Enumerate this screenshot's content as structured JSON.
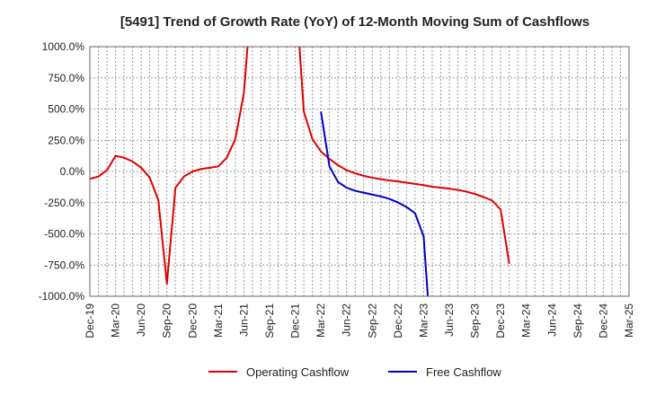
{
  "chart_data": {
    "type": "line",
    "title": "[5491]  Trend of Growth Rate (YoY) of 12-Month Moving Sum of Cashflows",
    "xlabel": "",
    "ylabel": "",
    "ylim": [
      -1000,
      1000
    ],
    "y_ticks": [
      1000,
      750,
      500,
      250,
      0,
      -250,
      -500,
      -750,
      -1000
    ],
    "y_tick_labels": [
      "1000.0%",
      "750.0%",
      "500.0%",
      "250.0%",
      "0.0%",
      "-250.0%",
      "-500.0%",
      "-750.0%",
      "-1000.0%"
    ],
    "x_tick_labels": [
      "Dec-19",
      "Mar-20",
      "Jun-20",
      "Sep-20",
      "Dec-20",
      "Mar-21",
      "Jun-21",
      "Sep-21",
      "Dec-21",
      "Mar-22",
      "Jun-22",
      "Sep-22",
      "Dec-22",
      "Mar-23",
      "Jun-23",
      "Sep-23",
      "Dec-23",
      "Mar-24",
      "Jun-24",
      "Sep-24",
      "Dec-24",
      "Mar-25"
    ],
    "months": [
      "2019-12",
      "2020-01",
      "2020-02",
      "2020-03",
      "2020-04",
      "2020-05",
      "2020-06",
      "2020-07",
      "2020-08",
      "2020-09",
      "2020-10",
      "2020-11",
      "2020-12",
      "2021-01",
      "2021-02",
      "2021-03",
      "2021-04",
      "2021-05",
      "2021-06",
      "2021-07",
      "2021-08",
      "2021-09",
      "2021-10",
      "2021-11",
      "2021-12",
      "2022-01",
      "2022-02",
      "2022-03",
      "2022-04",
      "2022-05",
      "2022-06",
      "2022-07",
      "2022-08",
      "2022-09",
      "2022-10",
      "2022-11",
      "2022-12",
      "2023-01",
      "2023-02",
      "2023-03",
      "2023-04",
      "2023-05",
      "2023-06",
      "2023-07",
      "2023-08",
      "2023-09",
      "2023-10",
      "2023-11",
      "2023-12",
      "2024-01",
      "2024-02",
      "2024-03",
      "2024-04",
      "2024-05",
      "2024-06",
      "2024-07",
      "2024-08",
      "2024-09",
      "2024-10",
      "2024-11",
      "2024-12",
      "2025-01",
      "2025-02",
      "2025-03"
    ],
    "grid": true,
    "legend_position": "bottom",
    "series": [
      {
        "name": "Operating Cashflow",
        "color": "#e00000",
        "values": [
          -60,
          -40,
          10,
          125,
          110,
          80,
          30,
          -50,
          -230,
          -900,
          -130,
          -40,
          0,
          20,
          30,
          40,
          110,
          260,
          630,
          1500,
          null,
          null,
          null,
          null,
          1500,
          480,
          260,
          160,
          100,
          50,
          10,
          -15,
          -35,
          -50,
          -62,
          -72,
          -80,
          -90,
          -100,
          -110,
          -122,
          -130,
          -138,
          -148,
          -162,
          -180,
          -205,
          -232,
          -305,
          -740,
          null,
          null,
          null,
          null,
          null,
          null,
          null,
          null,
          null,
          null,
          null,
          null,
          null,
          null
        ]
      },
      {
        "name": "Free Cashflow",
        "color": "#0000cc",
        "values": [
          null,
          null,
          null,
          null,
          null,
          null,
          null,
          null,
          null,
          null,
          null,
          null,
          null,
          null,
          null,
          null,
          null,
          null,
          null,
          null,
          null,
          null,
          null,
          null,
          null,
          null,
          null,
          480,
          40,
          -85,
          -130,
          -155,
          -170,
          -185,
          -200,
          -220,
          -248,
          -285,
          -335,
          -520,
          -1500,
          null,
          null,
          null,
          null,
          null,
          null,
          null,
          null,
          null,
          null,
          null,
          null,
          null,
          null,
          null,
          null,
          null,
          null,
          null,
          null,
          null,
          null,
          null
        ]
      }
    ]
  }
}
